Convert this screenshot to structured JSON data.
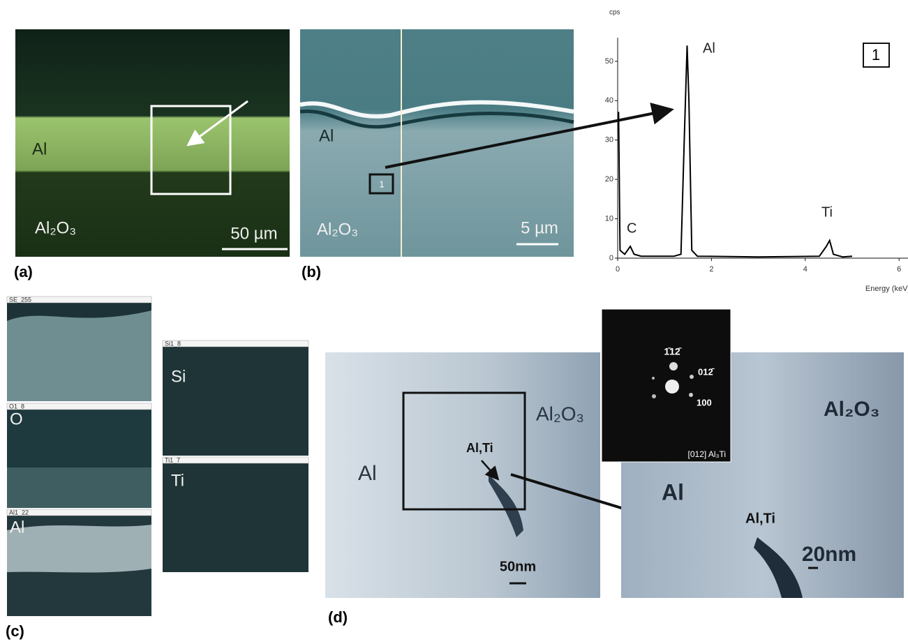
{
  "panel_a": {
    "label": "(a)",
    "layer_top": "Al",
    "layer_bottom": "Al₂O₃",
    "scale": "50 µm"
  },
  "panel_b": {
    "label": "(b)",
    "layer_top": "Al",
    "layer_bottom": "Al₂O₃",
    "scale": "5 µm",
    "point": "1"
  },
  "spectrum": {
    "type": "line",
    "y_label": "cps",
    "x_label": "Energy (keV)",
    "box_label": "1",
    "peaks": [
      "Al",
      "C",
      "Ti"
    ],
    "xlim": [
      0,
      6.2
    ],
    "ylim": [
      0,
      56
    ],
    "xticks": [
      0,
      2,
      4,
      6
    ],
    "yticks": [
      0,
      10,
      20,
      30,
      40,
      50
    ],
    "color": "#000000",
    "x": [
      0,
      0.02,
      0.05,
      0.15,
      0.27,
      0.35,
      0.5,
      1.2,
      1.35,
      1.42,
      1.48,
      1.52,
      1.58,
      1.7,
      3,
      4.3,
      4.45,
      4.52,
      4.6,
      4.8,
      5
    ],
    "values": [
      37,
      37,
      2,
      1,
      3,
      1,
      0.5,
      0.5,
      1,
      30,
      54,
      40,
      2,
      0.5,
      0.3,
      0.5,
      3,
      4.5,
      1,
      0.3,
      0.5
    ]
  },
  "panel_c": {
    "label": "(c)",
    "maps": [
      {
        "header": "SE_255",
        "element": ""
      },
      {
        "header": "O1_8",
        "element": "O"
      },
      {
        "header": "Al1_22",
        "element": "Al"
      },
      {
        "header": "Si1_8",
        "element": "Si"
      },
      {
        "header": "Ti1_7",
        "element": "Ti"
      }
    ]
  },
  "panel_d": {
    "label": "(d)",
    "left_al": "Al",
    "left_al2o3": "Al₂O₃",
    "left_phase": "Al,Ti",
    "left_scale": "50nm",
    "right_al": "Al",
    "right_al2o3": "Al₂O₃",
    "right_phase": "Al,Ti",
    "right_scale": "20nm",
    "diffraction": {
      "spot1": "1̄12̄",
      "spot2": "012̄",
      "spot3": "100",
      "zone": "[012] Al₃Ti"
    }
  }
}
